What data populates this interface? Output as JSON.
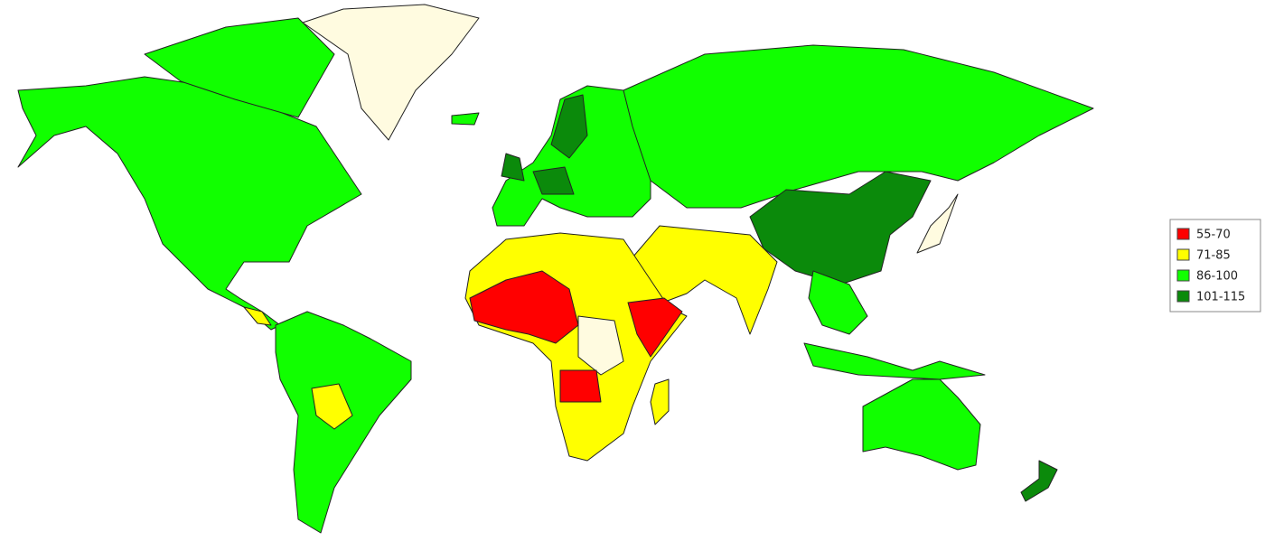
{
  "legend": {
    "items": [
      {
        "label": "55-70",
        "color": "#ff0000"
      },
      {
        "label": "71-85",
        "color": "#ffff00"
      },
      {
        "label": "86-100",
        "color": "#11ff00"
      },
      {
        "label": "101-115",
        "color": "#0b8a0b"
      }
    ]
  }
}
